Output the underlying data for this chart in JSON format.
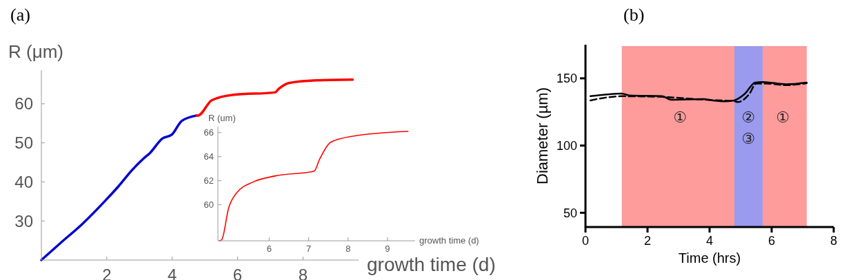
{
  "chart_data": [
    {
      "type": "line",
      "title": "(a)",
      "xlabel": "growth time (d)",
      "ylabel": "R (μm)",
      "xlim": [
        0,
        9.7
      ],
      "ylim": [
        20,
        68.6
      ],
      "xticks": [
        2,
        4,
        6,
        8
      ],
      "yticks": [
        30,
        40,
        50,
        60
      ],
      "series": [
        {
          "color": "#0000cc",
          "x": [
            0,
            0.59,
            1.26,
            2,
            2.35,
            2.77,
            3.1,
            3.32,
            3.7,
            3.99,
            4.29,
            4.75
          ],
          "values": [
            20,
            24.4,
            29.3,
            35.6,
            38.8,
            43,
            45.8,
            47.4,
            51.1,
            52.1,
            55.6,
            57
          ]
        },
        {
          "color": "#ff0000",
          "x": [
            4.75,
            4.79,
            5.21,
            5.88,
            7.14,
            7.27,
            7.56,
            8.4,
            9.52
          ],
          "values": [
            57,
            57,
            60.9,
            62.3,
            62.9,
            63.9,
            65.3,
            66,
            66.2
          ]
        }
      ]
    },
    {
      "type": "line",
      "xlabel": "growth time (d)",
      "ylabel": "R (um)",
      "xlim": [
        4.7,
        9.7
      ],
      "ylim": [
        57,
        66.5
      ],
      "xticks": [
        6,
        7,
        8,
        9
      ],
      "yticks": [
        60,
        62,
        64,
        66
      ],
      "series": [
        {
          "color": "#ff0000",
          "x": [
            4.74,
            4.8,
            4.97,
            5.18,
            5.6,
            6.16,
            7.14,
            7.28,
            7.56,
            8.12,
            9.52
          ],
          "values": [
            57,
            57.1,
            59.7,
            61,
            61.9,
            62.4,
            62.8,
            63.8,
            65.2,
            65.7,
            66.1
          ]
        }
      ]
    },
    {
      "type": "line",
      "title": "(b)",
      "xlabel": "Time (hrs)",
      "ylabel": "Diameter (µm)",
      "xlim": [
        0,
        8
      ],
      "ylim": [
        39.4,
        175
      ],
      "xticks": [
        0,
        2,
        4,
        6,
        8
      ],
      "yticks": [
        50,
        100,
        150
      ],
      "bands": [
        {
          "axis": "x",
          "from": 1.17,
          "to": 4.8,
          "color": "#fe9b9b"
        },
        {
          "axis": "x",
          "from": 4.8,
          "to": 5.71,
          "color": "#9a9aee"
        },
        {
          "axis": "x",
          "from": 5.71,
          "to": 7.13,
          "color": "#fe9b9b"
        }
      ],
      "annotations": [
        "①",
        "②",
        "③",
        "①"
      ],
      "series": [
        {
          "color": "#000000",
          "line_style": "solid",
          "x": [
            0.16,
            0.69,
            1.17,
            1.43,
            2.47,
            2.76,
            3.8,
            4.1,
            4.54,
            4.8,
            5.13,
            5.47,
            5.71,
            6.47,
            7.13
          ],
          "values": [
            136.7,
            138,
            138.7,
            137.2,
            136.7,
            134.1,
            134.6,
            133.6,
            132.9,
            133.6,
            138.4,
            146.9,
            147.3,
            145.6,
            146.9
          ]
        },
        {
          "color": "#000000",
          "line_style": "dashed",
          "x": [
            0.16,
            0.69,
            1.17,
            2.47,
            3.8,
            4.8,
            4.91,
            5.28,
            5.5,
            5.87,
            6.47,
            7.13
          ],
          "values": [
            133.6,
            135.8,
            136.7,
            136.2,
            134.1,
            132.9,
            132.4,
            138.4,
            146.1,
            146.1,
            144.9,
            146.4
          ]
        }
      ]
    }
  ]
}
